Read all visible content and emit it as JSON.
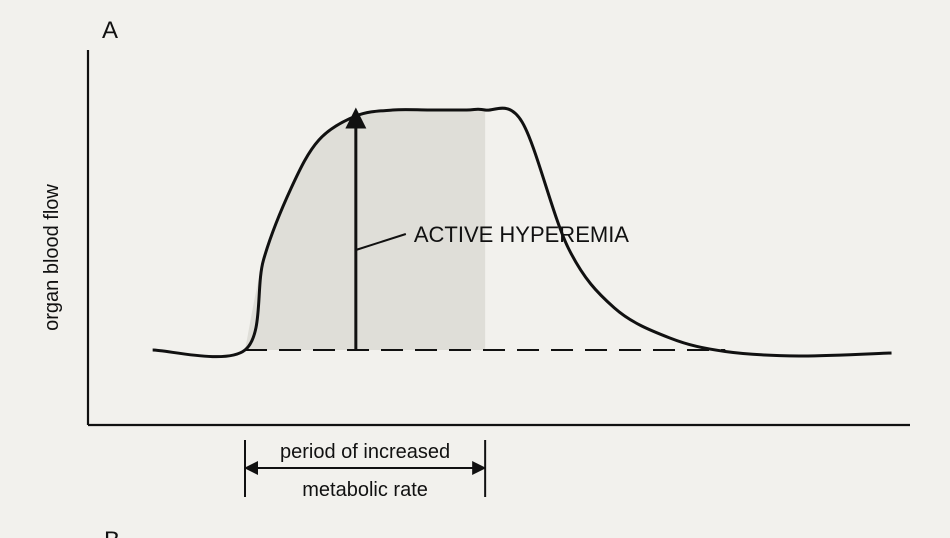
{
  "panel_labels": [
    "A",
    "B"
  ],
  "chart_data": {
    "type": "line",
    "title": "",
    "xlabel": "",
    "ylabel": "organ blood flow",
    "grid": false,
    "legend": "none",
    "series": [
      {
        "name": "",
        "style": "solid",
        "x": [
          0,
          1.0,
          1.2,
          1.5,
          1.8,
          2.2,
          2.6,
          3.0,
          3.4,
          3.6,
          4.0,
          4.5,
          5.0,
          5.6,
          6.2,
          7.0,
          8.0
        ],
        "y": [
          0.2,
          0.2,
          0.5,
          0.74,
          0.9,
          0.98,
          1.0,
          1.0,
          1.0,
          1.0,
          0.96,
          0.54,
          0.34,
          0.24,
          0.195,
          0.18,
          0.19
        ]
      },
      {
        "name": "",
        "style": "dashed",
        "x": [
          1.0,
          6.2
        ],
        "y": [
          0.2,
          0.2
        ]
      }
    ],
    "xlim": [
      -0.7,
      8.2
    ],
    "ylim": [
      -0.05,
      1.2
    ],
    "period": {
      "start": 1.0,
      "end": 3.6,
      "label_lines": [
        "period of increased",
        "metabolic rate"
      ]
    },
    "annotations": [
      {
        "text": "ACTIVE HYPEREMIA",
        "arrow_x": 2.2,
        "arrow_from_y": 0.2,
        "arrow_to_y": 1.0
      }
    ],
    "colors": {
      "line": "#111111",
      "shading": "#cfcdc6",
      "background": "#f2f1ed"
    }
  }
}
